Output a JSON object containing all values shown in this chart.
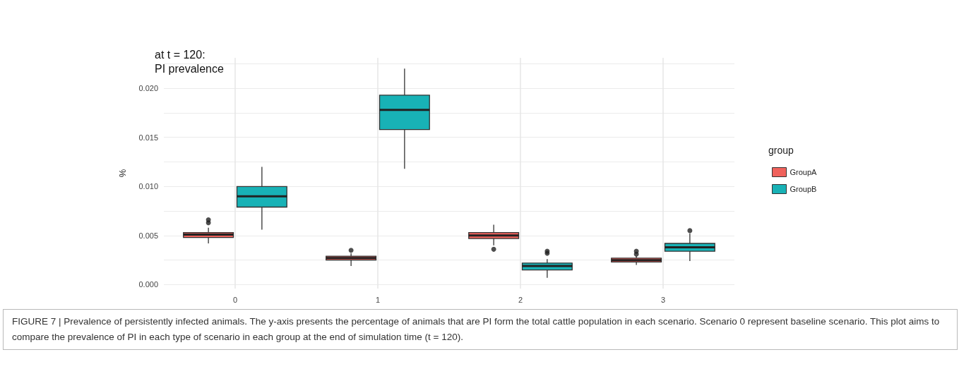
{
  "chart_data": {
    "type": "box",
    "title": "at t = 120:\nPI prevalence",
    "ylabel": "%",
    "legend_title": "group",
    "legend": "right",
    "grid": true,
    "categories": [
      "0",
      "1",
      "2",
      "3"
    ],
    "ylim": [
      -0.0004,
      0.0231
    ],
    "yticks": [
      {
        "value": 0,
        "label": "0.000"
      },
      {
        "value": 0.0025,
        "label": null
      },
      {
        "value": 0.005,
        "label": "0.005"
      },
      {
        "value": 0.0075,
        "label": null
      },
      {
        "value": 0.01,
        "label": "0.010"
      },
      {
        "value": 0.0125,
        "label": null
      },
      {
        "value": 0.015,
        "label": "0.015"
      },
      {
        "value": 0.0175,
        "label": null
      },
      {
        "value": 0.02,
        "label": "0.020"
      },
      {
        "value": 0.0225,
        "label": null
      }
    ],
    "series": [
      {
        "name": "GroupA",
        "color": "#f0625c",
        "boxes": [
          {
            "low": 0.0042,
            "q1": 0.0048,
            "median": 0.0051,
            "q3": 0.0053,
            "high": 0.0058,
            "outliers": [
              0.0063,
              0.0066
            ]
          },
          {
            "low": 0.0019,
            "q1": 0.0025,
            "median": 0.0027,
            "q3": 0.0029,
            "high": 0.0032,
            "outliers": [
              0.0035
            ]
          },
          {
            "low": 0.004,
            "q1": 0.0047,
            "median": 0.005,
            "q3": 0.0053,
            "high": 0.0061,
            "outliers": [
              0.0036
            ]
          },
          {
            "low": 0.002,
            "q1": 0.0023,
            "median": 0.0025,
            "q3": 0.0027,
            "high": 0.0029,
            "outliers": [
              0.0031,
              0.0034
            ]
          }
        ]
      },
      {
        "name": "GroupB",
        "color": "#18b2b6",
        "boxes": [
          {
            "low": 0.0056,
            "q1": 0.0079,
            "median": 0.009,
            "q3": 0.01,
            "high": 0.012
          },
          {
            "low": 0.0118,
            "q1": 0.0158,
            "median": 0.0178,
            "q3": 0.0193,
            "high": 0.022
          },
          {
            "low": 0.0007,
            "q1": 0.0015,
            "median": 0.0019,
            "q3": 0.0022,
            "high": 0.0026,
            "outliers": [
              0.0032,
              0.0034
            ]
          },
          {
            "low": 0.0024,
            "q1": 0.0034,
            "median": 0.0038,
            "q3": 0.0042,
            "high": 0.0052,
            "outliers": [
              0.0055
            ]
          }
        ]
      }
    ],
    "annotations": [
      "FIGURE 7 | Prevalence of persistently infected animals. The y-axis presents the percentage of animals that are PI form the total cattle population in each scenario. Scenario 0 represent baseline scenario. This plot aims to compare the prevalence of PI in each type of scenario in each group at the end of simulation time (t = 120)."
    ]
  }
}
